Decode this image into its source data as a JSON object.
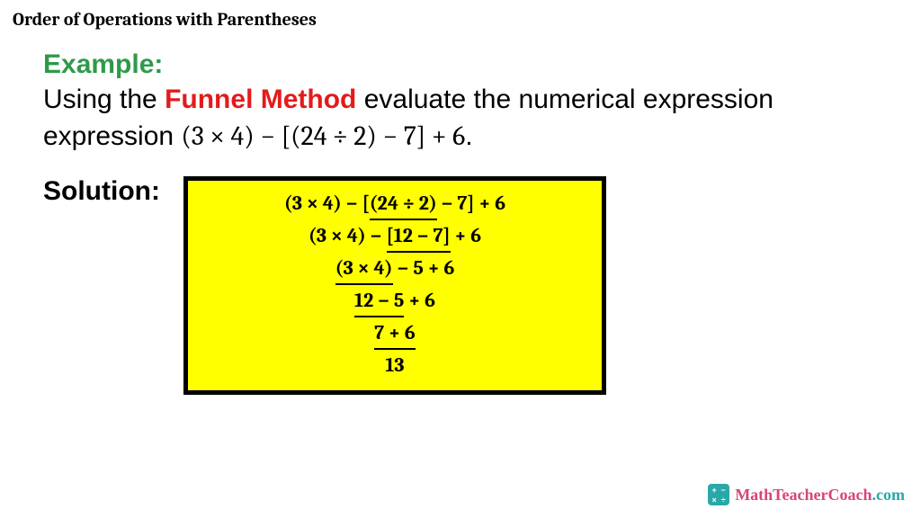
{
  "title": "Order of Operations with Parentheses",
  "example_label": "Example:",
  "prompt": {
    "pre": "Using the ",
    "highlight": "Funnel Method",
    "post": " evaluate the numerical expression ",
    "expression": "(3 × 4) − [(24 ÷ 2) − 7] + 6",
    "period": "."
  },
  "solution_label": "Solution:",
  "solution_box": {
    "background_color": "#ffff00",
    "border_color": "#000000",
    "border_width": 5,
    "font_family": "Cambria",
    "font_size": 22,
    "font_weight": "bold",
    "steps": [
      {
        "pre": "(3 × 4) − [",
        "ul": "(24 ÷ 2)",
        "post": " − 7] + 6"
      },
      {
        "pre": "(3 × 4) − ",
        "ul": "[12 − 7]",
        "post": " + 6"
      },
      {
        "pre": "",
        "ul": "(3 × 4)",
        "post": " − 5 + 6"
      },
      {
        "pre": "",
        "ul": "12 − 5",
        "post": " + 6"
      },
      {
        "pre": "",
        "ul": "7 + 6",
        "post": ""
      },
      {
        "pre": "",
        "ul": "",
        "post": "13"
      }
    ]
  },
  "colors": {
    "example_label": "#2e9a4a",
    "funnel_highlight": "#e31b1b",
    "text": "#000000",
    "background": "#ffffff"
  },
  "watermark": {
    "brand": "MathTeacherCoach",
    "suffix": ".com",
    "glyphs": [
      "+",
      "−",
      "×",
      "÷"
    ],
    "icon_bg": "#2aa8a8",
    "brand_color": "#d8447a",
    "suffix_color": "#2aa8a8"
  }
}
